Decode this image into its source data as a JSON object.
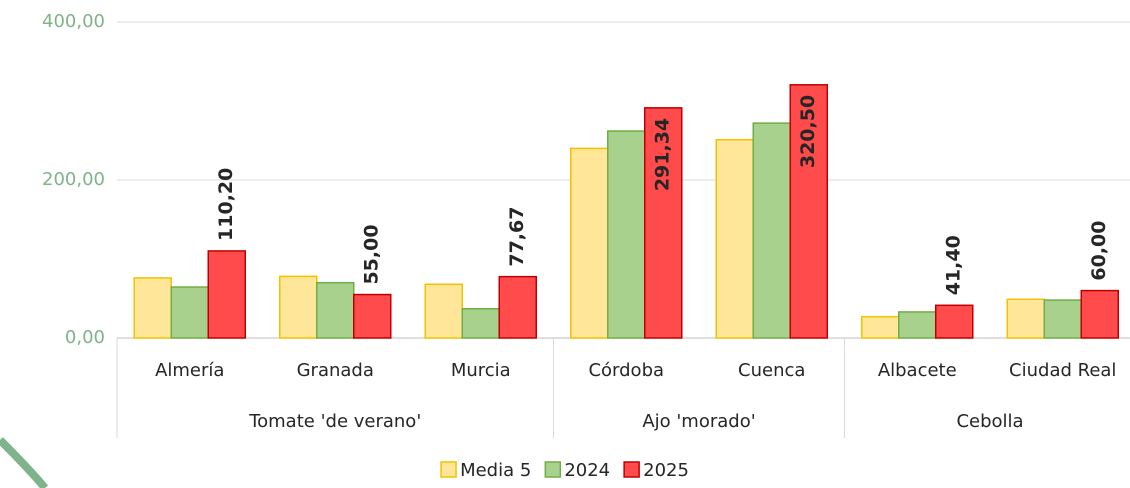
{
  "chart_data": {
    "type": "bar",
    "groups": [
      {
        "name": "Tomate 'de verano'",
        "categories": [
          "Almería",
          "Granada",
          "Murcia"
        ]
      },
      {
        "name": "Ajo 'morado'",
        "categories": [
          "Córdoba",
          "Cuenca"
        ]
      },
      {
        "name": "Cebolla",
        "categories": [
          "Albacete",
          "Ciudad Real"
        ]
      }
    ],
    "series": [
      {
        "name": "Media 5",
        "color": "#FFE699",
        "values": [
          76,
          78,
          68,
          240,
          251,
          27,
          49
        ]
      },
      {
        "name": "2024",
        "color": "#A9D18E",
        "values": [
          64.5,
          70,
          37,
          262,
          272,
          33,
          48
        ]
      },
      {
        "name": "2025",
        "color": "#FF4B4B",
        "values": [
          110.2,
          55,
          77.67,
          291.34,
          320.5,
          41.4,
          60
        ],
        "value_labels": [
          "110,20",
          "55,00",
          "77,67",
          "291,34",
          "320,50",
          "41,40",
          "60,00"
        ]
      }
    ],
    "ylim": [
      0,
      400
    ],
    "yticks": [
      {
        "value": 0,
        "label": "0,00"
      },
      {
        "value": 200,
        "label": "200,00"
      },
      {
        "value": 400,
        "label": "400,00"
      }
    ],
    "grid": true,
    "legend": "bottom"
  }
}
